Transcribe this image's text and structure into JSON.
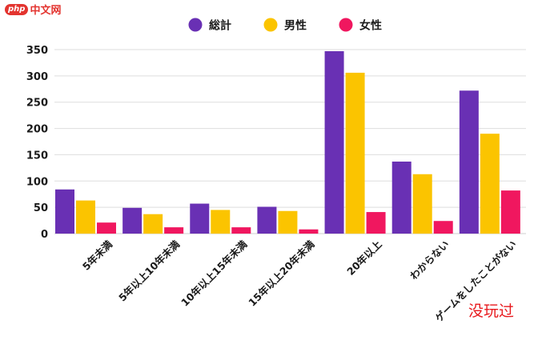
{
  "watermark": {
    "logo_text": "php",
    "site_text": "中文网"
  },
  "annotation": "没玩过",
  "chart_data": {
    "type": "bar",
    "categories": [
      "5年未満",
      "5年以上10年未満",
      "10年以上15年未満",
      "15年以上20年未満",
      "20年以上",
      "わからない",
      "ゲームをしたことがない"
    ],
    "series": [
      {
        "name": "総計",
        "color": "#6930b4",
        "values": [
          84,
          49,
          57,
          51,
          347,
          137,
          272
        ]
      },
      {
        "name": "男性",
        "color": "#fbc400",
        "values": [
          63,
          37,
          45,
          43,
          306,
          113,
          190
        ]
      },
      {
        "name": "女性",
        "color": "#f0175f",
        "values": [
          21,
          12,
          12,
          8,
          41,
          24,
          82
        ]
      }
    ],
    "y_ticks": [
      "0",
      "50",
      "100",
      "150",
      "200",
      "250",
      "300",
      "350"
    ],
    "ylim": [
      0,
      350
    ],
    "grid": true,
    "legend": "top-center",
    "title": "",
    "xlabel": "",
    "ylabel": ""
  }
}
